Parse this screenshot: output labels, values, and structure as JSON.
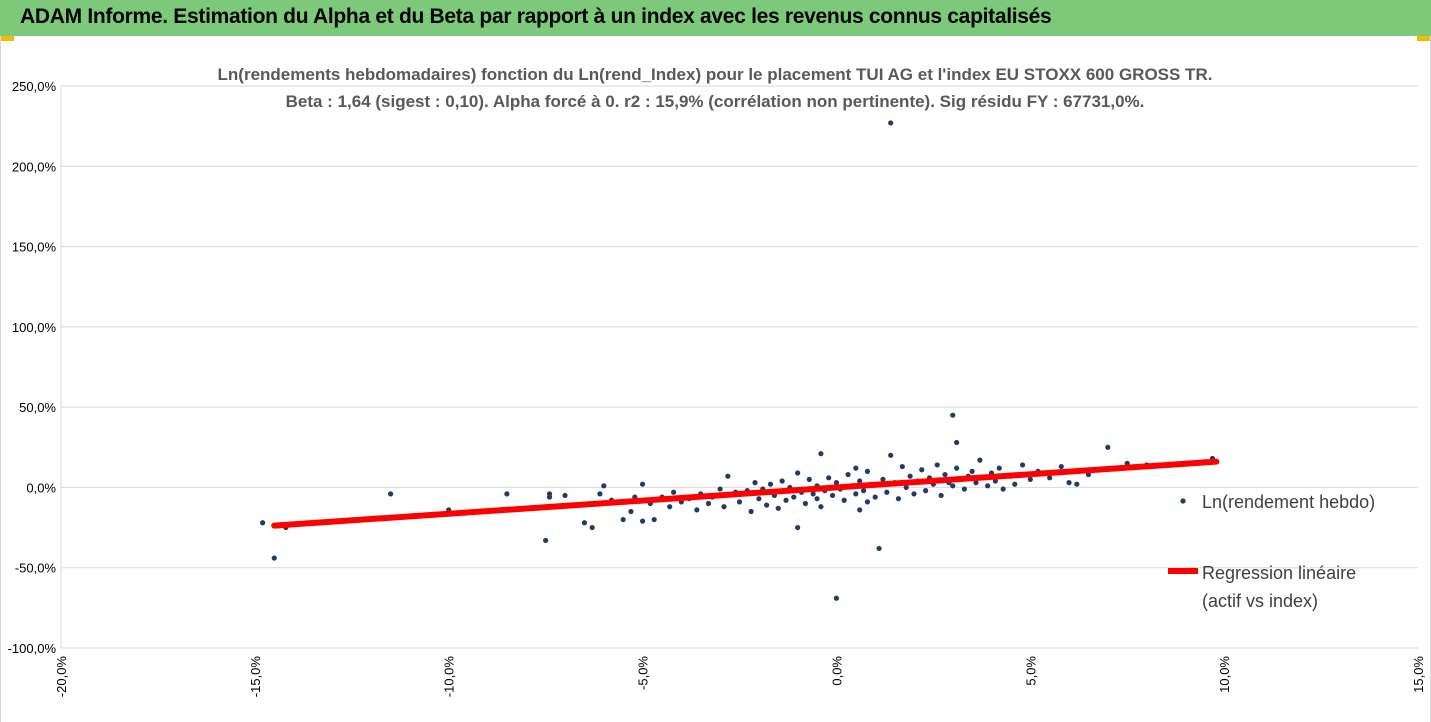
{
  "header": {
    "title": "ADAM Informe. Estimation du Alpha et du Beta par rapport à un index avec les revenus connus capitalisés"
  },
  "colors": {
    "header_bg": "#7dc97a",
    "points": "#1f3b6e",
    "regression": "#ff0000",
    "grid": "#d9d9d9",
    "corner": "#f5b900"
  },
  "chart_data": {
    "type": "scatter",
    "title_line1": "Ln(rendements hebdomadaires) fonction du Ln(rend_Index) pour le placement TUI AG et l'index EU STOXX 600 GROSS TR.",
    "title_line2": "Beta : 1,64 (sigest : 0,10). Alpha forcé à 0. r2 : 15,9% (corrélation non pertinente). Sig résidu FY : 67731,0%.",
    "xlim": [
      -0.2,
      0.15
    ],
    "ylim": [
      -1.0,
      2.5
    ],
    "x_ticks": [
      "-20,0%",
      "-15,0%",
      "-10,0%",
      "-5,0%",
      "0,0%",
      "5,0%",
      "10,0%",
      "15,0%"
    ],
    "y_ticks": [
      "250,0%",
      "200,0%",
      "150,0%",
      "100,0%",
      "50,0%",
      "0,0%",
      "-50,0%",
      "-100,0%"
    ],
    "grid": "horizontal",
    "legend_position": "right",
    "series": [
      {
        "name": "Ln(rendement hebdo)",
        "kind": "points",
        "points": [
          [
            -0.145,
            -0.44
          ],
          [
            -0.144,
            -0.24
          ],
          [
            -0.148,
            -0.22
          ],
          [
            -0.142,
            -0.25
          ],
          [
            -0.115,
            -0.04
          ],
          [
            -0.1,
            -0.14
          ],
          [
            -0.1,
            -0.16
          ],
          [
            -0.092,
            -0.15
          ],
          [
            -0.085,
            -0.04
          ],
          [
            -0.075,
            -0.33
          ],
          [
            -0.074,
            -0.06
          ],
          [
            -0.074,
            -0.04
          ],
          [
            -0.07,
            -0.05
          ],
          [
            -0.065,
            -0.22
          ],
          [
            -0.063,
            -0.25
          ],
          [
            -0.061,
            -0.04
          ],
          [
            -0.06,
            0.01
          ],
          [
            -0.058,
            -0.08
          ],
          [
            -0.055,
            -0.2
          ],
          [
            -0.053,
            -0.15
          ],
          [
            -0.052,
            -0.06
          ],
          [
            -0.05,
            0.02
          ],
          [
            -0.05,
            -0.21
          ],
          [
            -0.048,
            -0.1
          ],
          [
            -0.047,
            -0.2
          ],
          [
            -0.045,
            -0.06
          ],
          [
            -0.043,
            -0.12
          ],
          [
            -0.042,
            -0.03
          ],
          [
            -0.04,
            -0.09
          ],
          [
            -0.038,
            -0.07
          ],
          [
            -0.036,
            -0.14
          ],
          [
            -0.035,
            -0.04
          ],
          [
            -0.033,
            -0.1
          ],
          [
            -0.032,
            -0.06
          ],
          [
            -0.03,
            -0.01
          ],
          [
            -0.029,
            -0.12
          ],
          [
            -0.028,
            0.07
          ],
          [
            -0.026,
            -0.03
          ],
          [
            -0.025,
            -0.09
          ],
          [
            -0.023,
            -0.02
          ],
          [
            -0.022,
            -0.15
          ],
          [
            -0.021,
            0.03
          ],
          [
            -0.02,
            -0.07
          ],
          [
            -0.019,
            -0.01
          ],
          [
            -0.018,
            -0.11
          ],
          [
            -0.017,
            0.02
          ],
          [
            -0.016,
            -0.05
          ],
          [
            -0.015,
            -0.13
          ],
          [
            -0.014,
            0.04
          ],
          [
            -0.013,
            -0.08
          ],
          [
            -0.012,
            0.0
          ],
          [
            -0.011,
            -0.06
          ],
          [
            -0.01,
            0.09
          ],
          [
            -0.01,
            -0.25
          ],
          [
            -0.009,
            -0.03
          ],
          [
            -0.008,
            -0.1
          ],
          [
            -0.007,
            0.05
          ],
          [
            -0.006,
            -0.04
          ],
          [
            -0.005,
            0.01
          ],
          [
            -0.005,
            -0.07
          ],
          [
            -0.004,
            0.21
          ],
          [
            -0.004,
            -0.12
          ],
          [
            -0.003,
            -0.02
          ],
          [
            -0.002,
            0.06
          ],
          [
            -0.001,
            -0.05
          ],
          [
            0.0,
            -0.69
          ],
          [
            0.0,
            0.03
          ],
          [
            0.001,
            -0.01
          ],
          [
            0.002,
            -0.08
          ],
          [
            0.003,
            0.08
          ],
          [
            0.004,
            0.01
          ],
          [
            0.005,
            -0.04
          ],
          [
            0.005,
            0.12
          ],
          [
            0.006,
            -0.14
          ],
          [
            0.006,
            0.04
          ],
          [
            0.007,
            -0.02
          ],
          [
            0.008,
            0.1
          ],
          [
            0.008,
            -0.09
          ],
          [
            0.009,
            0.02
          ],
          [
            0.01,
            -0.06
          ],
          [
            0.011,
            -0.38
          ],
          [
            0.012,
            0.05
          ],
          [
            0.013,
            -0.03
          ],
          [
            0.014,
            2.27
          ],
          [
            0.014,
            0.2
          ],
          [
            0.015,
            0.03
          ],
          [
            0.016,
            -0.07
          ],
          [
            0.017,
            0.13
          ],
          [
            0.018,
            0.0
          ],
          [
            0.019,
            0.07
          ],
          [
            0.02,
            -0.04
          ],
          [
            0.021,
            0.04
          ],
          [
            0.022,
            0.11
          ],
          [
            0.023,
            -0.02
          ],
          [
            0.024,
            0.06
          ],
          [
            0.025,
            0.02
          ],
          [
            0.026,
            0.14
          ],
          [
            0.027,
            -0.05
          ],
          [
            0.028,
            0.08
          ],
          [
            0.029,
            0.03
          ],
          [
            0.03,
            0.01
          ],
          [
            0.031,
            0.12
          ],
          [
            0.032,
            0.05
          ],
          [
            0.033,
            -0.01
          ],
          [
            0.034,
            0.07
          ],
          [
            0.035,
            0.1
          ],
          [
            0.036,
            0.03
          ],
          [
            0.037,
            0.17
          ],
          [
            0.038,
            0.06
          ],
          [
            0.039,
            0.01
          ],
          [
            0.04,
            0.09
          ],
          [
            0.041,
            0.04
          ],
          [
            0.042,
            0.12
          ],
          [
            0.043,
            -0.01
          ],
          [
            0.045,
            0.07
          ],
          [
            0.046,
            0.02
          ],
          [
            0.048,
            0.14
          ],
          [
            0.05,
            0.05
          ],
          [
            0.052,
            0.1
          ],
          [
            0.055,
            0.06
          ],
          [
            0.058,
            0.13
          ],
          [
            0.06,
            0.03
          ],
          [
            0.062,
            0.02
          ],
          [
            0.065,
            0.08
          ],
          [
            0.07,
            0.25
          ],
          [
            0.075,
            0.15
          ],
          [
            0.08,
            0.14
          ],
          [
            0.03,
            0.45
          ],
          [
            0.031,
            0.28
          ],
          [
            0.097,
            0.18
          ],
          [
            0.095,
            0.16
          ]
        ]
      },
      {
        "name": "Regression linéaire (actif vs index)",
        "kind": "line",
        "legend_lines": [
          "Regression linéaire",
          "(actif vs index)"
        ],
        "x": [
          -0.145,
          0.098
        ],
        "y": [
          -0.2378,
          0.1607
        ]
      }
    ]
  }
}
